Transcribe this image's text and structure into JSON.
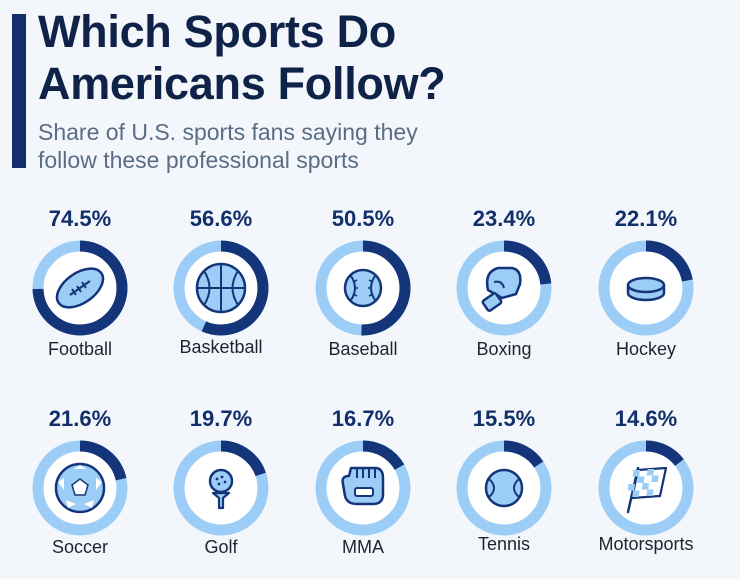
{
  "header": {
    "title_line1": "Which Sports Do",
    "title_line2": "Americans Follow?",
    "subtitle_line1": "Share of U.S. sports fans saying they",
    "subtitle_line2": "follow these professional sports"
  },
  "colors": {
    "accent": "#132f6b",
    "ring_fill": "#15357a",
    "ring_track": "#9ccdf6",
    "icon_fill": "#9ccdf6",
    "icon_stroke": "#15357a"
  },
  "chart_data": {
    "type": "donut",
    "title": "Which Sports Do Americans Follow?",
    "subtitle": "Share of U.S. sports fans saying they follow these professional sports",
    "unit": "%",
    "categories": [
      "Football",
      "Basketball",
      "Baseball",
      "Boxing",
      "Hockey",
      "Soccer",
      "Golf",
      "MMA",
      "Tennis",
      "Motorsports"
    ],
    "values": [
      74.5,
      56.6,
      50.5,
      23.4,
      22.1,
      21.6,
      19.7,
      16.7,
      15.5,
      14.6
    ],
    "items": [
      {
        "label": "Football",
        "value": 74.5,
        "value_label": "74.5%",
        "icon": "football-icon"
      },
      {
        "label": "Basketball",
        "value": 56.6,
        "value_label": "56.6%",
        "icon": "basketball-icon"
      },
      {
        "label": "Baseball",
        "value": 50.5,
        "value_label": "50.5%",
        "icon": "baseball-icon"
      },
      {
        "label": "Boxing",
        "value": 23.4,
        "value_label": "23.4%",
        "icon": "boxing-glove-icon"
      },
      {
        "label": "Hockey",
        "value": 22.1,
        "value_label": "22.1%",
        "icon": "hockey-puck-icon"
      },
      {
        "label": "Soccer",
        "value": 21.6,
        "value_label": "21.6%",
        "icon": "soccer-ball-icon"
      },
      {
        "label": "Golf",
        "value": 19.7,
        "value_label": "19.7%",
        "icon": "golf-ball-icon"
      },
      {
        "label": "MMA",
        "value": 16.7,
        "value_label": "16.7%",
        "icon": "mma-glove-icon"
      },
      {
        "label": "Tennis",
        "value": 15.5,
        "value_label": "15.5%",
        "icon": "tennis-ball-icon"
      },
      {
        "label": "Motorsports",
        "value": 14.6,
        "value_label": "14.6%",
        "icon": "checkered-flag-icon"
      }
    ]
  }
}
